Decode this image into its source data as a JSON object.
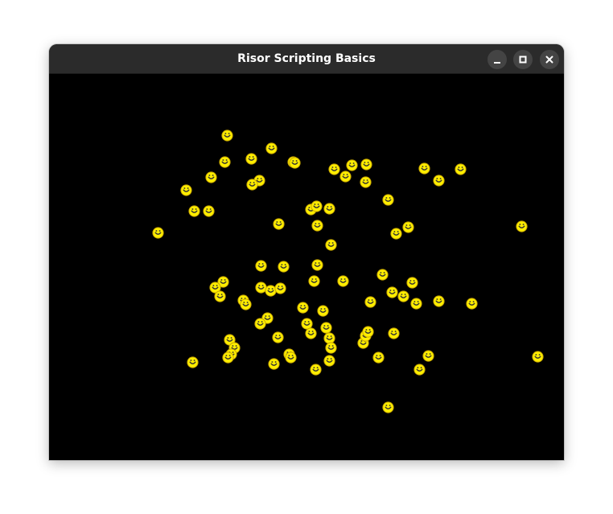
{
  "window": {
    "title": "Risor Scripting Basics",
    "controls": {
      "minimize": "minimize-icon",
      "maximize": "maximize-icon",
      "close": "close-icon"
    }
  },
  "game": {
    "background_color": "#000000",
    "sprite": {
      "kind": "smiley-face",
      "fill_color": "#ffee00",
      "outline_color": "#c9a800",
      "feature_color": "#333333"
    },
    "sprite_count": 81
  }
}
